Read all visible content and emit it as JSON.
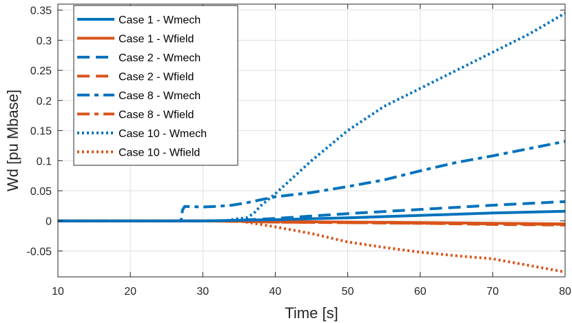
{
  "chart_data": {
    "type": "line",
    "xlabel": "Time [s]",
    "ylabel": "Wd [pu Mbase]",
    "xlim": [
      10,
      80
    ],
    "ylim": [
      -0.093,
      0.36
    ],
    "xticks": [
      10,
      20,
      30,
      40,
      50,
      60,
      70,
      80
    ],
    "yticks": [
      -0.05,
      0,
      0.05,
      0.1,
      0.15,
      0.2,
      0.25,
      0.3,
      0.35
    ],
    "ytick_labels": [
      "-0.05",
      "0",
      "0.05",
      "0.1",
      "0.15",
      "0.2",
      "0.25",
      "0.3",
      "0.35"
    ],
    "grid": true,
    "legend_position": "top-left",
    "colors": {
      "blue": "#0072bd",
      "orange": "#d95319"
    },
    "series": [
      {
        "name": "Case 1 - Wmech",
        "color": "blue",
        "style": "solid",
        "x": [
          10,
          30,
          40,
          50,
          60,
          70,
          80
        ],
        "y": [
          0,
          0,
          0.002,
          0.005,
          0.009,
          0.013,
          0.016
        ]
      },
      {
        "name": "Case 1 - Wfield",
        "color": "orange",
        "style": "solid",
        "x": [
          10,
          30,
          40,
          50,
          60,
          70,
          80
        ],
        "y": [
          0,
          0,
          -0.001,
          -0.002,
          -0.003,
          -0.004,
          -0.005
        ]
      },
      {
        "name": "Case 2 - Wmech",
        "color": "blue",
        "style": "dashed",
        "x": [
          10,
          33,
          40,
          50,
          60,
          70,
          80
        ],
        "y": [
          0,
          0,
          0.004,
          0.012,
          0.019,
          0.026,
          0.032
        ]
      },
      {
        "name": "Case 2 - Wfield",
        "color": "orange",
        "style": "dashed",
        "x": [
          10,
          30,
          40,
          50,
          60,
          70,
          80
        ],
        "y": [
          0,
          0,
          -0.002,
          -0.003,
          -0.004,
          -0.006,
          -0.007
        ]
      },
      {
        "name": "Case 8 - Wmech",
        "color": "blue",
        "style": "dashdot",
        "x": [
          10,
          27,
          27.2,
          27.5,
          30,
          32,
          34,
          36,
          38,
          40,
          45,
          50,
          55,
          60,
          65,
          70,
          75,
          80
        ],
        "y": [
          0,
          0,
          0.018,
          0.024,
          0.023,
          0.024,
          0.026,
          0.03,
          0.035,
          0.04,
          0.047,
          0.057,
          0.068,
          0.083,
          0.097,
          0.108,
          0.12,
          0.132
        ]
      },
      {
        "name": "Case 8 - Wfield",
        "color": "orange",
        "style": "dashdot",
        "x": [
          10,
          30,
          40,
          50,
          60,
          70,
          80
        ],
        "y": [
          0,
          0,
          -0.002,
          -0.003,
          -0.004,
          -0.005,
          -0.006
        ]
      },
      {
        "name": "Case 10 - Wmech",
        "color": "blue",
        "style": "dotted",
        "x": [
          10,
          33,
          35,
          36,
          37,
          38,
          40,
          45,
          50,
          55,
          60,
          65,
          70,
          75,
          80
        ],
        "y": [
          0,
          0,
          0.004,
          0.005,
          0.012,
          0.025,
          0.045,
          0.1,
          0.15,
          0.19,
          0.22,
          0.25,
          0.28,
          0.31,
          0.345
        ]
      },
      {
        "name": "Case 10 - Wfield",
        "color": "orange",
        "style": "dotted",
        "x": [
          10,
          35,
          40,
          45,
          50,
          55,
          60,
          65,
          70,
          75,
          80
        ],
        "y": [
          0,
          0,
          -0.01,
          -0.021,
          -0.035,
          -0.044,
          -0.052,
          -0.058,
          -0.063,
          -0.074,
          -0.085
        ]
      }
    ]
  }
}
